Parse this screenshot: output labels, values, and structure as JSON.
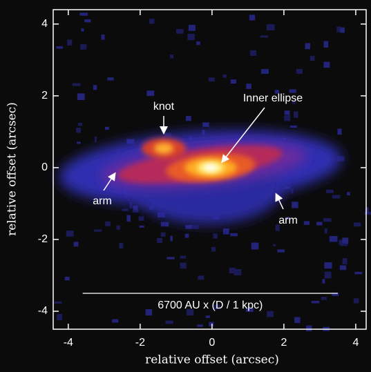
{
  "chart_data": {
    "type": "image",
    "x_label": "relative offset (arcsec)",
    "y_label": "relative offset (arcsec)",
    "xlim": [
      -4.42,
      4.29
    ],
    "ylim": [
      -4.5,
      4.4
    ],
    "xticks": [
      -4,
      -2,
      0,
      2,
      4
    ],
    "yticks": [
      -4,
      -2,
      0,
      2,
      4
    ],
    "annotations": [
      "knot",
      "Inner ellipse",
      "arm",
      "arm"
    ],
    "scale_bar": {
      "label": "6700 AU x (D / 1 kpc)",
      "xlim": [
        -3.6,
        3.5
      ],
      "y": -3.5
    }
  }
}
